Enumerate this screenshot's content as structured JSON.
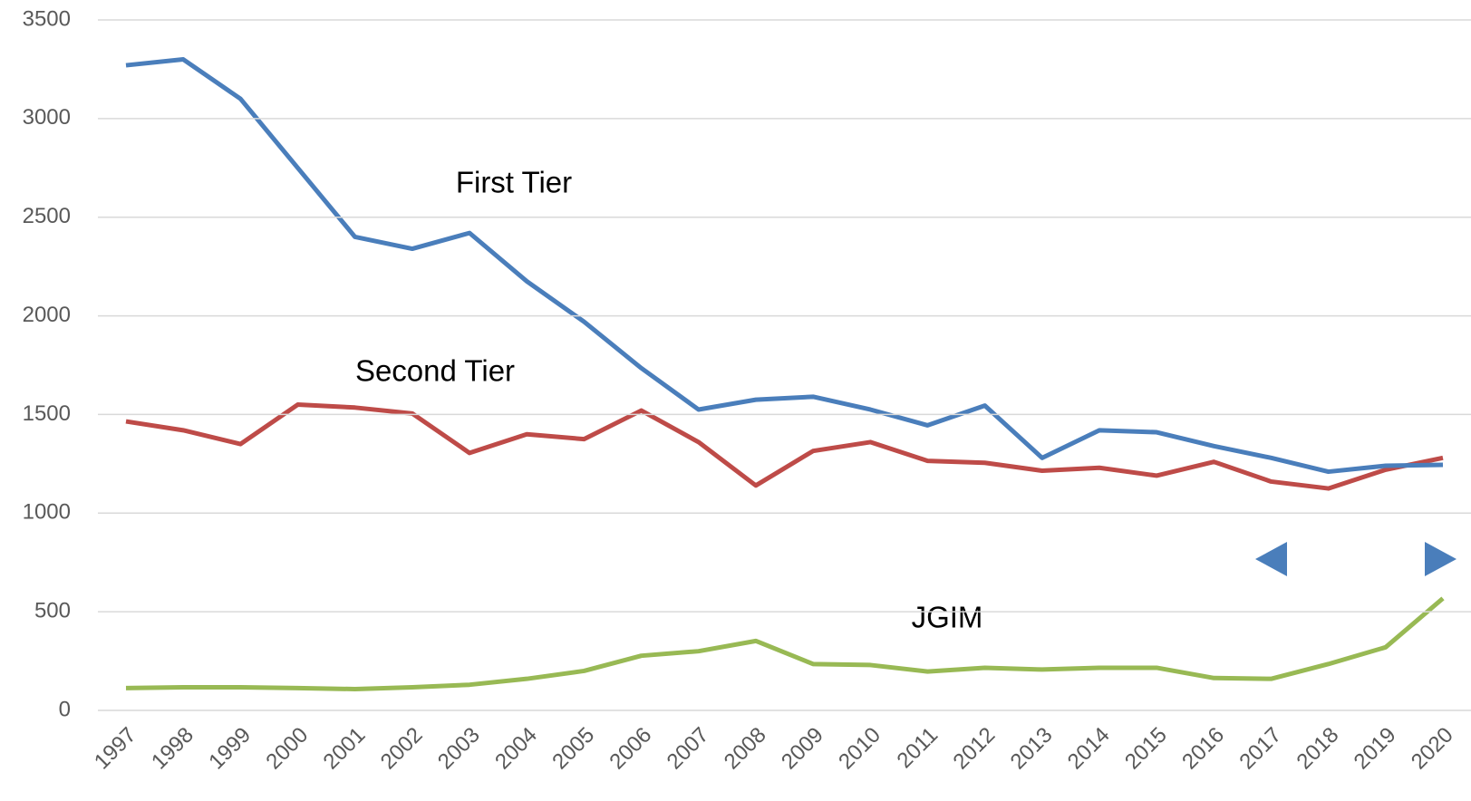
{
  "chart_data": {
    "type": "line",
    "categories": [
      "1997",
      "1998",
      "1999",
      "2000",
      "2001",
      "2002",
      "2003",
      "2004",
      "2005",
      "2006",
      "2007",
      "2008",
      "2009",
      "2010",
      "2011",
      "2012",
      "2013",
      "2014",
      "2015",
      "2016",
      "2017",
      "2018",
      "2019",
      "2020"
    ],
    "series": [
      {
        "name": "First Tier",
        "color": "#4a7ebb",
        "values": [
          3270,
          3300,
          3100,
          2750,
          2400,
          2340,
          2420,
          2175,
          1970,
          1735,
          1525,
          1575,
          1590,
          1525,
          1445,
          1545,
          1280,
          1420,
          1410,
          1340,
          1280,
          1210,
          1240,
          1245
        ]
      },
      {
        "name": "Second Tier",
        "color": "#be4b48",
        "values": [
          1465,
          1420,
          1350,
          1550,
          1535,
          1505,
          1305,
          1400,
          1375,
          1520,
          1360,
          1140,
          1315,
          1360,
          1265,
          1255,
          1215,
          1230,
          1190,
          1260,
          1160,
          1125,
          1220,
          1280
        ]
      },
      {
        "name": "JGIM",
        "color": "#98b954",
        "values": [
          113,
          117,
          117,
          113,
          108,
          117,
          130,
          160,
          200,
          277,
          300,
          352,
          235,
          230,
          197,
          216,
          207,
          216,
          216,
          164,
          160,
          235,
          320,
          568
        ]
      }
    ],
    "ylim": [
      0,
      3500
    ],
    "yticks": [
      0,
      500,
      1000,
      1500,
      2000,
      2500,
      3000,
      3500
    ],
    "grid": true
  }
}
